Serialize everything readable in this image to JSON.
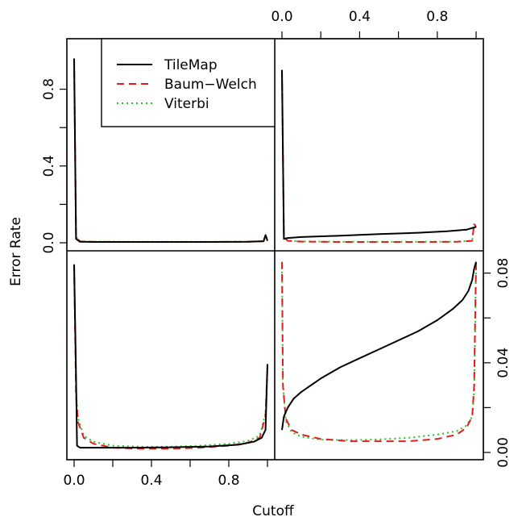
{
  "chart_data": {
    "type": "line",
    "xlabel": "Cutoff",
    "ylabel": "Error Rate",
    "panels": [
      {
        "position": "top-left",
        "xlim": [
          0,
          1
        ],
        "ylim": [
          0,
          1
        ],
        "series": [
          {
            "name": "TileMap",
            "x": [
              0.0,
              0.01,
              0.03,
              0.1,
              0.3,
              0.5,
              0.7,
              0.9,
              0.98,
              0.99,
              1.0
            ],
            "y": [
              0.96,
              0.02,
              0.005,
              0.004,
              0.004,
              0.004,
              0.004,
              0.005,
              0.008,
              0.04,
              0.01
            ]
          },
          {
            "name": "Baum−Welch",
            "x": [
              0.0,
              0.01,
              0.03,
              0.1,
              0.3,
              0.5,
              0.7,
              0.9,
              0.98,
              0.99,
              1.0
            ],
            "y": [
              0.96,
              0.03,
              0.007,
              0.005,
              0.004,
              0.004,
              0.004,
              0.005,
              0.008,
              0.04,
              0.01
            ]
          },
          {
            "name": "Viterbi",
            "x": [
              0.0,
              0.01,
              0.03,
              0.1,
              0.3,
              0.5,
              0.7,
              0.9,
              0.98,
              0.99,
              1.0
            ],
            "y": [
              0.96,
              0.03,
              0.008,
              0.006,
              0.005,
              0.005,
              0.005,
              0.006,
              0.009,
              0.035,
              0.01
            ]
          }
        ]
      },
      {
        "position": "top-right",
        "xlim": [
          0,
          1
        ],
        "ylim": [
          0,
          1
        ],
        "series": [
          {
            "name": "TileMap",
            "x": [
              0.0,
              0.01,
              0.03,
              0.1,
              0.3,
              0.5,
              0.7,
              0.85,
              0.95,
              0.99,
              1.0
            ],
            "y": [
              0.9,
              0.02,
              0.025,
              0.03,
              0.037,
              0.045,
              0.052,
              0.06,
              0.068,
              0.08,
              0.082
            ]
          },
          {
            "name": "Baum−Welch",
            "x": [
              0.0,
              0.01,
              0.03,
              0.1,
              0.3,
              0.5,
              0.7,
              0.9,
              0.98,
              0.99,
              1.0
            ],
            "y": [
              0.9,
              0.03,
              0.01,
              0.006,
              0.004,
              0.004,
              0.004,
              0.005,
              0.01,
              0.1,
              0.08
            ]
          },
          {
            "name": "Viterbi",
            "x": [
              0.0,
              0.01,
              0.03,
              0.1,
              0.3,
              0.5,
              0.7,
              0.9,
              0.98,
              0.99,
              1.0
            ],
            "y": [
              0.9,
              0.03,
              0.011,
              0.007,
              0.005,
              0.005,
              0.005,
              0.006,
              0.011,
              0.1,
              0.08
            ]
          }
        ]
      },
      {
        "position": "bottom-left",
        "xlim": [
          0,
          1
        ],
        "ylim": [
          0,
          1
        ],
        "series": [
          {
            "name": "TileMap",
            "x": [
              0.0,
              0.01,
              0.015,
              0.03,
              0.1,
              0.3,
              0.5,
              0.7,
              0.85,
              0.93,
              0.97,
              0.99,
              1.0
            ],
            "y": [
              0.96,
              0.4,
              0.05,
              0.04,
              0.04,
              0.04,
              0.042,
              0.046,
              0.055,
              0.07,
              0.09,
              0.13,
              0.46
            ]
          },
          {
            "name": "Baum−Welch",
            "x": [
              0.0,
              0.01,
              0.02,
              0.05,
              0.1,
              0.2,
              0.35,
              0.5,
              0.65,
              0.8,
              0.9,
              0.96,
              0.99,
              1.0
            ],
            "y": [
              0.96,
              0.3,
              0.17,
              0.09,
              0.06,
              0.04,
              0.035,
              0.035,
              0.04,
              0.05,
              0.065,
              0.09,
              0.2,
              0.45
            ]
          },
          {
            "name": "Viterbi",
            "x": [
              0.0,
              0.01,
              0.02,
              0.05,
              0.1,
              0.2,
              0.35,
              0.5,
              0.65,
              0.8,
              0.9,
              0.96,
              0.99,
              1.0
            ],
            "y": [
              0.96,
              0.32,
              0.19,
              0.1,
              0.07,
              0.05,
              0.045,
              0.045,
              0.05,
              0.06,
              0.075,
              0.1,
              0.21,
              0.45
            ]
          }
        ]
      },
      {
        "position": "bottom-right",
        "xlim": [
          0,
          1
        ],
        "ylim": [
          0,
          0.1
        ],
        "y_ticks": [
          0.0,
          0.04,
          0.08
        ],
        "series": [
          {
            "name": "TileMap",
            "x": [
              0.0,
              0.01,
              0.03,
              0.06,
              0.1,
              0.2,
              0.3,
              0.4,
              0.5,
              0.6,
              0.7,
              0.8,
              0.88,
              0.93,
              0.96,
              0.98,
              0.99,
              1.0
            ],
            "y": [
              0.01,
              0.016,
              0.02,
              0.024,
              0.027,
              0.033,
              0.038,
              0.042,
              0.046,
              0.05,
              0.054,
              0.059,
              0.064,
              0.068,
              0.072,
              0.077,
              0.082,
              0.085
            ]
          },
          {
            "name": "Baum−Welch",
            "x": [
              0.0,
              0.005,
              0.02,
              0.05,
              0.1,
              0.2,
              0.35,
              0.5,
              0.65,
              0.8,
              0.9,
              0.95,
              0.98,
              0.99,
              0.995,
              1.0
            ],
            "y": [
              0.085,
              0.03,
              0.015,
              0.01,
              0.008,
              0.006,
              0.005,
              0.005,
              0.005,
              0.006,
              0.008,
              0.011,
              0.016,
              0.03,
              0.06,
              0.085
            ]
          },
          {
            "name": "Viterbi",
            "x": [
              0.0,
              0.005,
              0.02,
              0.05,
              0.1,
              0.2,
              0.35,
              0.5,
              0.65,
              0.8,
              0.9,
              0.95,
              0.98,
              0.99,
              0.995,
              1.0
            ],
            "y": [
              0.085,
              0.03,
              0.014,
              0.009,
              0.007,
              0.0057,
              0.0055,
              0.0058,
              0.0065,
              0.008,
              0.0095,
              0.012,
              0.016,
              0.028,
              0.055,
              0.085
            ]
          }
        ]
      }
    ],
    "x_ticks": [
      0.0,
      0.2,
      0.4,
      0.6,
      0.8,
      1.0
    ],
    "x_tick_labels": [
      "0.0",
      "",
      "0.4",
      "",
      "0.8",
      ""
    ],
    "y_ticks": [
      0.0,
      0.2,
      0.4,
      0.6,
      0.8
    ],
    "y_tick_labels": [
      "0.0",
      "",
      "0.4",
      "",
      "0.8"
    ],
    "y_ticks_right": [
      0.0,
      0.02,
      0.04,
      0.06,
      0.08
    ],
    "y_tick_labels_right": [
      "0.00",
      "",
      "0.04",
      "",
      "0.08"
    ],
    "legend": {
      "placement": "top-left panel, top",
      "entries": [
        {
          "name": "TileMap",
          "color": "#000000",
          "dash": "solid"
        },
        {
          "name": "Baum−Welch",
          "color": "#df1f1f",
          "dash": "dashed"
        },
        {
          "name": "Viterbi",
          "color": "#22c522",
          "dash": "dotted"
        }
      ]
    },
    "grid": false
  }
}
